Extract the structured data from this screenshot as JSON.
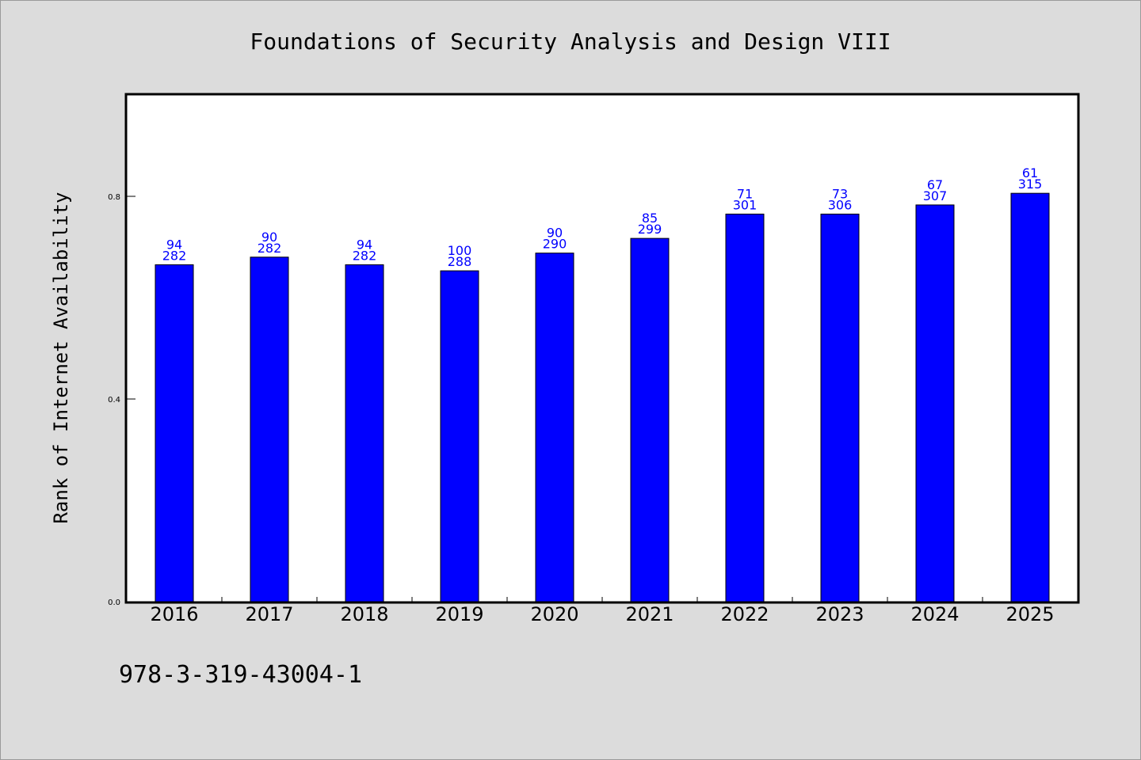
{
  "chart_data": {
    "type": "bar",
    "title": "Foundations of Security Analysis and Design VIII",
    "ylabel": "Rank of Internet Availability",
    "xlabel": "",
    "categories": [
      "2016",
      "2017",
      "2018",
      "2019",
      "2020",
      "2021",
      "2022",
      "2023",
      "2024",
      "2025"
    ],
    "values": [
      0.665,
      0.68,
      0.665,
      0.653,
      0.688,
      0.717,
      0.765,
      0.765,
      0.783,
      0.806
    ],
    "data_labels_top": [
      "94",
      "90",
      "94",
      "100",
      "90",
      "85",
      "71",
      "73",
      "67",
      "61"
    ],
    "data_labels_bottom": [
      "282",
      "282",
      "282",
      "288",
      "290",
      "299",
      "301",
      "306",
      "307",
      "315"
    ],
    "yticks": [
      "0.0",
      "0.4",
      "0.8"
    ],
    "ylim": [
      0,
      1.0
    ],
    "grid": false,
    "legend": "none",
    "bar_color": "#0000ff",
    "label_color": "#0000ff",
    "background_color": "#dcdcdc",
    "plot_background_color": "#ffffff"
  },
  "footer": {
    "isbn": "978-3-319-43004-1"
  }
}
